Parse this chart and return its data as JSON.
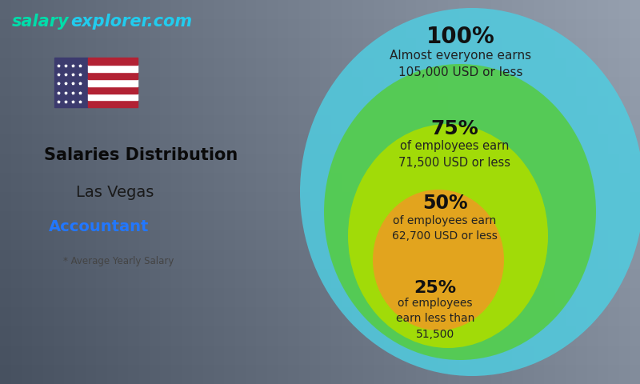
{
  "title_site_bold": "salary",
  "title_site_rest": "explorer.com",
  "title_site_color1": "#00ddaa",
  "title_site_color2": "#22ccee",
  "title_main": "Salaries Distribution",
  "title_city": "Las Vegas",
  "title_job": "Accountant",
  "title_job_color": "#2277ff",
  "subtitle": "* Average Yearly Salary",
  "pct_labels": [
    "100%",
    "75%",
    "50%",
    "25%"
  ],
  "sub_labels": [
    "Almost everyone earns\n105,000 USD or less",
    "of employees earn\n71,500 USD or less",
    "of employees earn\n62,700 USD or less",
    "of employees\nearn less than\n51,500"
  ],
  "circle_colors": [
    "#50cce0",
    "#55cc44",
    "#aadd00",
    "#e8a020"
  ],
  "circle_alphas": [
    0.85,
    0.88,
    0.9,
    0.93
  ],
  "bg_color_top": "#7a8a95",
  "bg_color_bottom": "#6a7a85",
  "flag_colors_stripe": [
    "#B22234",
    "#FFFFFF",
    "#B22234",
    "#FFFFFF",
    "#B22234",
    "#FFFFFF",
    "#B22234"
  ],
  "flag_blue": "#3C3B6E",
  "left_text_color": "#1a1a1a",
  "left_text_color2": "#ffffff"
}
